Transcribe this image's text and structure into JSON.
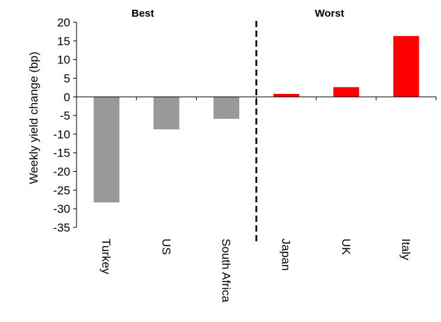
{
  "chart_data": {
    "type": "bar",
    "title": "",
    "ylabel": "Weekly yield change (bp)",
    "xlabel": "",
    "ylim": [
      -35,
      20
    ],
    "yticks": [
      20,
      15,
      10,
      5,
      0,
      -5,
      -10,
      -15,
      -20,
      -25,
      -30,
      -35
    ],
    "grid": false,
    "categories": [
      "Turkey",
      "US",
      "South Africa",
      "Japan",
      "UK",
      "Italy"
    ],
    "values": [
      -28.3,
      -8.7,
      -5.9,
      0.8,
      2.6,
      16.3
    ],
    "bar_colors": [
      "#999999",
      "#999999",
      "#999999",
      "#ff0000",
      "#ff0000",
      "#ff0000"
    ],
    "sections": [
      {
        "label": "Best",
        "categories": [
          "Turkey",
          "US",
          "South Africa"
        ]
      },
      {
        "label": "Worst",
        "categories": [
          "Japan",
          "UK",
          "Italy"
        ]
      }
    ],
    "divider": "dashed line between South Africa and Japan"
  }
}
